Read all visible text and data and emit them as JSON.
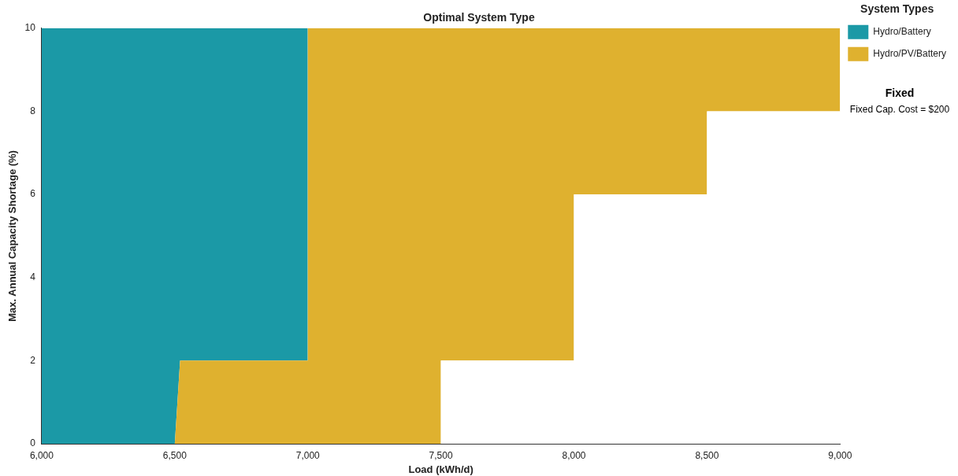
{
  "chart_data": {
    "type": "area",
    "title": "Optimal System Type",
    "xlabel": "Load (kWh/d)",
    "ylabel": "Max. Annual Capacity Shortage (%)",
    "legend_title": "System Types",
    "legend": "right",
    "x": [
      6000,
      6500,
      6520,
      7000,
      7000,
      7500,
      7500,
      8000,
      8000,
      8500,
      8500,
      9000
    ],
    "series": [
      {
        "color": "#ffffff",
        "values": [
          0,
          0,
          0,
          0,
          0,
          0,
          2,
          2,
          6,
          6,
          8,
          8
        ]
      },
      {
        "name": "Hydro/PV/Battery",
        "color": "#dfb12f",
        "values": [
          0,
          0,
          2,
          2,
          10,
          10,
          8,
          8,
          4,
          4,
          2,
          2
        ]
      },
      {
        "name": "Hydro/Battery",
        "color": "#1b99a6",
        "values": [
          10,
          10,
          8,
          8,
          null,
          null,
          null,
          null,
          null,
          null,
          null,
          null
        ]
      }
    ],
    "stacked": true,
    "xlim": [
      6000,
      9000
    ],
    "xticks": [
      {
        "value": 6000,
        "label": "6,000"
      },
      {
        "value": 6500,
        "label": "6,500"
      },
      {
        "value": 7000,
        "label": "7,000"
      },
      {
        "value": 7500,
        "label": "7,500"
      },
      {
        "value": 8000,
        "label": "8,000"
      },
      {
        "value": 8500,
        "label": "8,500"
      },
      {
        "value": 9000,
        "label": "9,000"
      }
    ],
    "ylim": [
      0,
      10
    ],
    "yticks": [
      0,
      2,
      4,
      6,
      8,
      10
    ],
    "grid": false,
    "annotations": [
      "Fixed",
      "Fixed Cap. Cost = $200"
    ]
  }
}
